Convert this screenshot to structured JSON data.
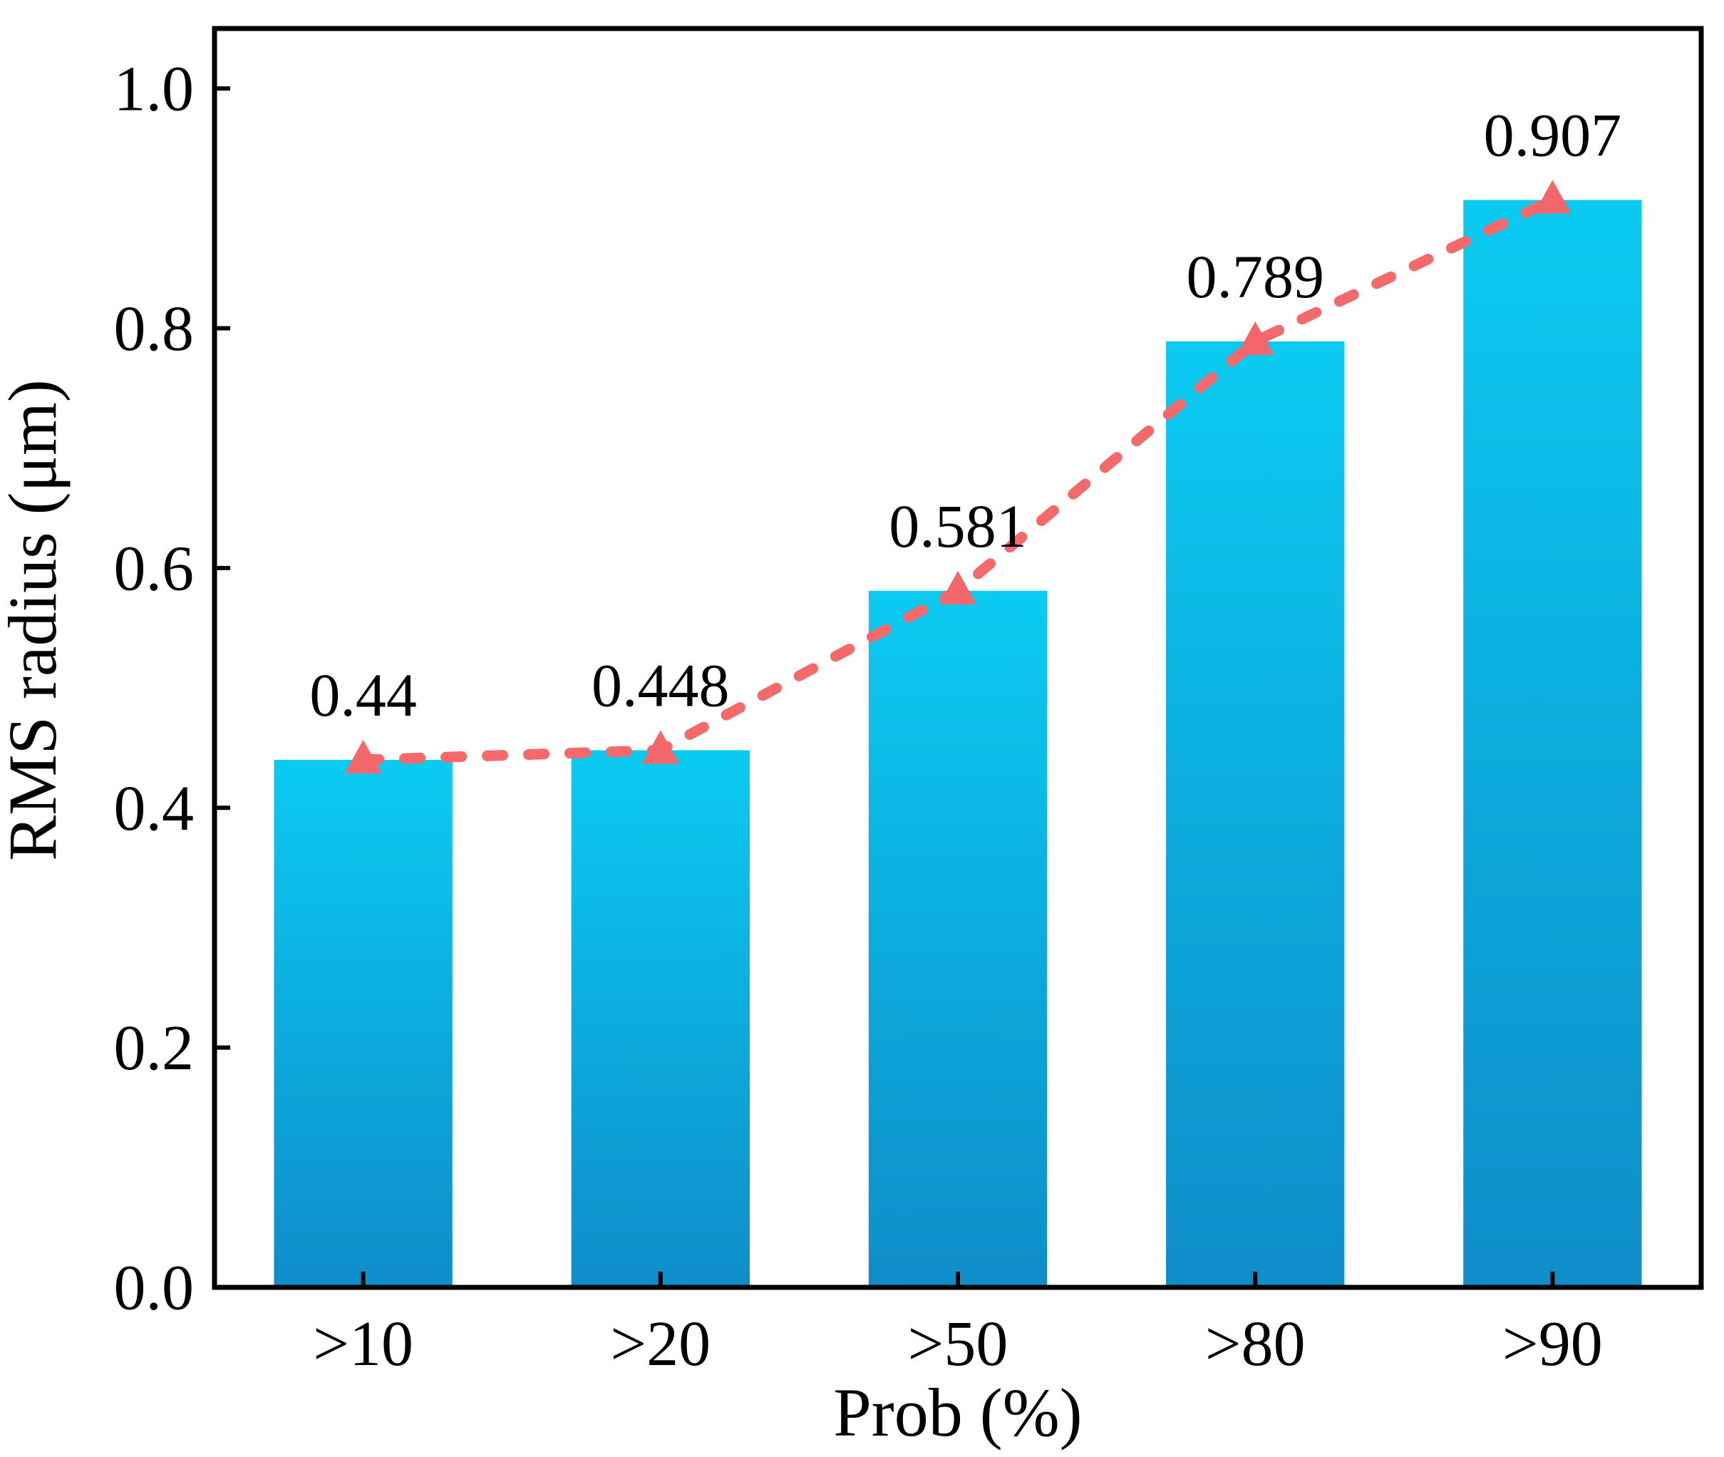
{
  "chart_data": {
    "type": "bar",
    "title": "",
    "xlabel": "Prob (%)",
    "ylabel": "RMS radius (μm)",
    "categories": [
      ">10",
      ">20",
      ">50",
      ">80",
      ">90"
    ],
    "series": [
      {
        "name": "RMS radius bars",
        "type": "bar",
        "values": [
          0.44,
          0.448,
          0.581,
          0.789,
          0.907
        ]
      },
      {
        "name": "RMS radius trend",
        "type": "line",
        "style": "dashed",
        "marker": "triangle-up",
        "values": [
          0.44,
          0.448,
          0.581,
          0.789,
          0.907
        ]
      }
    ],
    "point_labels": [
      "0.44",
      "0.448",
      "0.581",
      "0.789",
      "0.907"
    ],
    "ylim": [
      0,
      1.05
    ],
    "yticks": [
      0.0,
      0.2,
      0.4,
      0.6,
      0.8,
      1.0
    ],
    "ytick_labels": [
      "0.0",
      "0.2",
      "0.4",
      "0.6",
      "0.8",
      "1.0"
    ],
    "grid": false,
    "legend": "none",
    "layout_hints": {
      "bar_width_fraction": 0.6,
      "ticks_direction": "in",
      "box_frame": true
    },
    "colors": {
      "bar_gradient_top": "#0bcbf1",
      "bar_gradient_bottom": "#0e8dc9",
      "line": "#f5696b",
      "marker": "#f4666a",
      "text": "#000000",
      "axis": "#000000",
      "background": "#ffffff"
    }
  }
}
